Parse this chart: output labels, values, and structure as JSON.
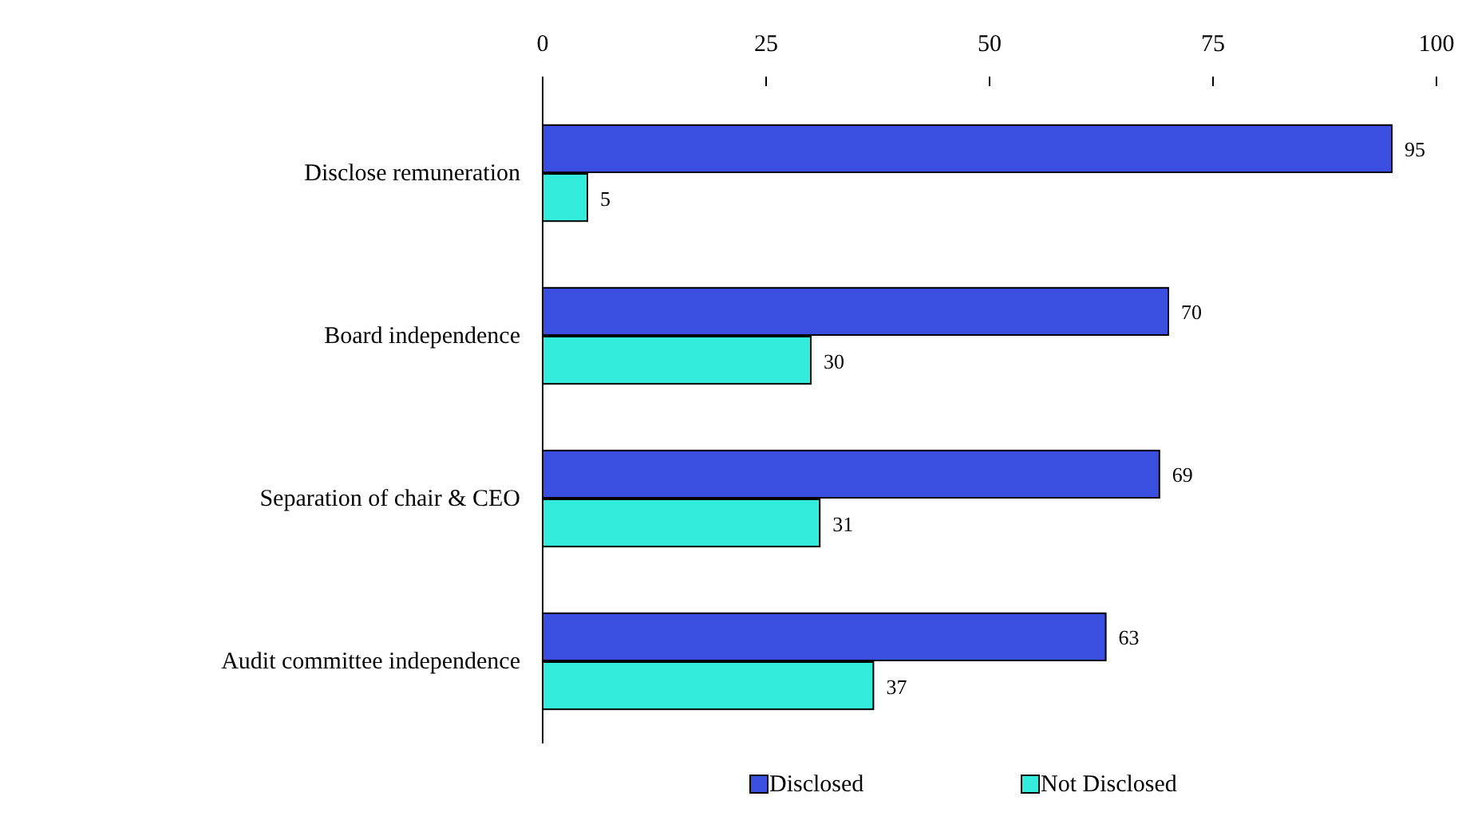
{
  "chart_data": {
    "type": "bar",
    "orientation": "horizontal",
    "categories": [
      "Disclose remuneration",
      "Board independence",
      "Separation of chair & CEO",
      "Audit committee independence"
    ],
    "series": [
      {
        "name": "Disclosed",
        "color": "#3a4ee0",
        "values": [
          95,
          70,
          69,
          63
        ]
      },
      {
        "name": "Not Disclosed",
        "color": "#33ecdc",
        "values": [
          5,
          30,
          31,
          37
        ]
      }
    ],
    "xlim": [
      0,
      100
    ],
    "xticks": [
      0,
      25,
      50,
      75,
      100
    ],
    "data_labels": true,
    "legend": "bottom",
    "grid": false
  }
}
